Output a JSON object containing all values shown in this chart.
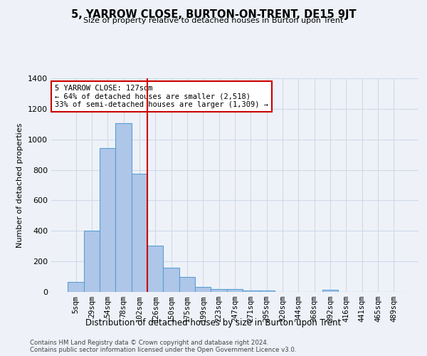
{
  "title": "5, YARROW CLOSE, BURTON-ON-TRENT, DE15 9JT",
  "subtitle": "Size of property relative to detached houses in Burton upon Trent",
  "xlabel": "Distribution of detached houses by size in Burton upon Trent",
  "ylabel": "Number of detached properties",
  "footnote1": "Contains HM Land Registry data © Crown copyright and database right 2024.",
  "footnote2": "Contains public sector information licensed under the Open Government Licence v3.0.",
  "categories": [
    "5sqm",
    "29sqm",
    "54sqm",
    "78sqm",
    "102sqm",
    "126sqm",
    "150sqm",
    "175sqm",
    "199sqm",
    "223sqm",
    "247sqm",
    "271sqm",
    "295sqm",
    "320sqm",
    "344sqm",
    "368sqm",
    "392sqm",
    "416sqm",
    "441sqm",
    "465sqm",
    "489sqm"
  ],
  "values": [
    65,
    400,
    945,
    1105,
    775,
    305,
    160,
    97,
    35,
    18,
    18,
    10,
    10,
    0,
    0,
    0,
    15,
    0,
    0,
    0,
    0
  ],
  "bar_color": "#aec6e8",
  "bar_edge_color": "#5a9fd4",
  "grid_color": "#d0d8e8",
  "background_color": "#eef2f8",
  "vline_index": 5,
  "vline_color": "#cc0000",
  "annotation_text": "5 YARROW CLOSE: 127sqm\n← 64% of detached houses are smaller (2,518)\n33% of semi-detached houses are larger (1,309) →",
  "annotation_box_color": "#ffffff",
  "annotation_box_edge": "#cc0000",
  "ylim": [
    0,
    1400
  ],
  "yticks": [
    0,
    200,
    400,
    600,
    800,
    1000,
    1200,
    1400
  ]
}
